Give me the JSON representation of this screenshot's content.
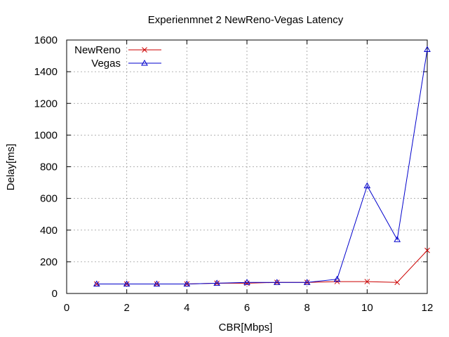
{
  "chart_data": {
    "type": "line",
    "title": "Experienmnet 2 NewReno-Vegas Latency",
    "xlabel": "CBR[Mbps]",
    "ylabel": "Delay[ms]",
    "xlim": [
      0,
      12
    ],
    "ylim": [
      0,
      1600
    ],
    "x_ticks": [
      0,
      2,
      4,
      6,
      8,
      10,
      12
    ],
    "y_ticks": [
      0,
      200,
      400,
      600,
      800,
      1000,
      1200,
      1400,
      1600
    ],
    "grid": true,
    "legend_position": "top-left",
    "series": [
      {
        "name": "NewReno",
        "color": "#cc0000",
        "marker": "x",
        "x": [
          1,
          2,
          3,
          4,
          5,
          6,
          7,
          8,
          9,
          10,
          11,
          12
        ],
        "y": [
          60,
          60,
          60,
          60,
          65,
          65,
          70,
          70,
          75,
          75,
          70,
          272
        ]
      },
      {
        "name": "Vegas",
        "color": "#0000cc",
        "marker": "triangle",
        "x": [
          1,
          2,
          3,
          4,
          5,
          6,
          7,
          8,
          9,
          10,
          11,
          12
        ],
        "y": [
          60,
          60,
          60,
          60,
          65,
          70,
          70,
          70,
          90,
          680,
          340,
          1540
        ]
      }
    ]
  }
}
